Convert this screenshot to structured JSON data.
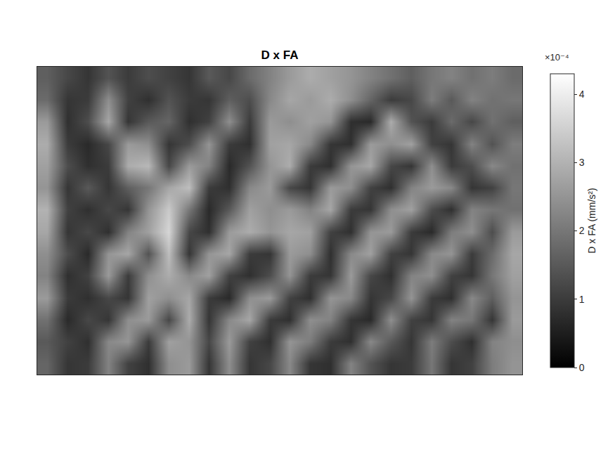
{
  "chart_data": {
    "type": "heatmap",
    "title": "D x FA",
    "colorbar_title": "D x FA (mm/s²)",
    "annotations": [
      "×10⁻⁴"
    ],
    "tick_labels": false,
    "zlim": [
      0,
      4.3
    ],
    "zticks": [
      0,
      1,
      2,
      3,
      4
    ],
    "z": [
      [
        1.6,
        1.2,
        0.9,
        1.4,
        1.0,
        1.3,
        1.1,
        0.9,
        1.5,
        1.2,
        1.8,
        2.2,
        2.6,
        2.9,
        2.7,
        2.5,
        2.2,
        1.9,
        1.6,
        2.0,
        2.2,
        1.9,
        2.1,
        1.8
      ],
      [
        1.8,
        0.9,
        1.0,
        2.4,
        1.1,
        0.8,
        1.4,
        1.0,
        0.9,
        1.6,
        1.3,
        2.3,
        2.8,
        2.6,
        2.9,
        2.4,
        1.7,
        1.0,
        1.2,
        2.1,
        1.5,
        2.2,
        1.9,
        2.0
      ],
      [
        2.6,
        0.8,
        1.3,
        2.8,
        0.9,
        1.5,
        1.7,
        0.8,
        1.1,
        2.4,
        1.0,
        2.6,
        2.4,
        2.7,
        2.5,
        0.8,
        0.7,
        2.9,
        1.4,
        1.0,
        1.8,
        1.2,
        1.9,
        1.6
      ],
      [
        2.9,
        1.0,
        0.7,
        1.2,
        2.6,
        2.4,
        0.9,
        1.3,
        2.5,
        1.0,
        0.8,
        2.7,
        2.8,
        2.3,
        0.9,
        0.8,
        2.6,
        2.4,
        2.7,
        1.1,
        0.9,
        2.2,
        1.4,
        2.1
      ],
      [
        2.7,
        1.3,
        0.8,
        1.0,
        2.9,
        3.1,
        1.2,
        2.6,
        2.2,
        0.7,
        1.4,
        2.5,
        2.9,
        1.0,
        0.8,
        2.5,
        2.8,
        1.2,
        0.9,
        2.4,
        1.0,
        1.3,
        2.3,
        1.9
      ],
      [
        2.5,
        0.9,
        1.5,
        0.9,
        1.6,
        2.0,
        2.8,
        3.2,
        1.0,
        0.8,
        2.3,
        2.6,
        1.2,
        0.9,
        2.6,
        2.4,
        1.1,
        0.8,
        2.2,
        2.6,
        2.3,
        0.9,
        1.1,
        2.0
      ],
      [
        3.0,
        1.1,
        0.8,
        1.2,
        0.9,
        2.5,
        3.4,
        2.0,
        0.7,
        1.5,
        2.7,
        2.4,
        2.6,
        2.2,
        2.8,
        1.0,
        0.9,
        2.4,
        2.7,
        1.3,
        0.8,
        2.2,
        2.0,
        1.9
      ],
      [
        2.8,
        0.9,
        1.2,
        0.8,
        2.2,
        2.7,
        3.6,
        1.2,
        0.8,
        2.6,
        2.9,
        2.5,
        2.8,
        2.7,
        1.1,
        0.8,
        2.5,
        2.6,
        1.0,
        0.7,
        2.1,
        2.4,
        1.3,
        2.6
      ],
      [
        2.4,
        1.3,
        0.7,
        2.5,
        2.8,
        1.4,
        3.2,
        0.9,
        2.5,
        2.8,
        1.0,
        0.9,
        2.6,
        2.4,
        0.8,
        2.3,
        2.7,
        1.1,
        0.9,
        2.3,
        2.5,
        1.0,
        1.8,
        2.8
      ],
      [
        2.2,
        0.8,
        1.1,
        2.6,
        1.0,
        2.4,
        2.9,
        2.3,
        2.7,
        1.1,
        0.8,
        1.3,
        2.5,
        1.0,
        0.9,
        2.6,
        1.2,
        0.8,
        2.2,
        2.4,
        1.1,
        0.9,
        2.0,
        2.7
      ],
      [
        2.6,
        1.0,
        0.8,
        1.2,
        0.9,
        2.7,
        2.4,
        2.8,
        1.0,
        0.7,
        2.4,
        2.6,
        1.1,
        0.8,
        2.5,
        2.3,
        0.9,
        1.2,
        2.5,
        1.0,
        0.8,
        2.3,
        1.6,
        2.5
      ],
      [
        1.9,
        0.7,
        1.2,
        0.9,
        2.4,
        2.6,
        1.2,
        2.9,
        0.9,
        2.3,
        2.8,
        1.0,
        0.8,
        2.4,
        2.2,
        0.9,
        0.7,
        2.4,
        1.1,
        0.9,
        2.2,
        2.0,
        0.9,
        2.6
      ],
      [
        1.5,
        1.1,
        0.8,
        2.3,
        2.5,
        1.0,
        2.7,
        2.5,
        1.2,
        2.6,
        1.1,
        0.8,
        2.5,
        2.1,
        1.0,
        0.8,
        2.3,
        1.5,
        0.9,
        2.1,
        1.3,
        0.8,
        2.2,
        2.4
      ],
      [
        1.7,
        0.9,
        1.0,
        2.2,
        1.1,
        0.8,
        2.4,
        2.6,
        0.9,
        2.4,
        0.9,
        1.2,
        2.3,
        0.9,
        0.8,
        2.2,
        1.4,
        0.9,
        1.0,
        2.0,
        0.9,
        1.1,
        2.1,
        2.5
      ]
    ]
  }
}
